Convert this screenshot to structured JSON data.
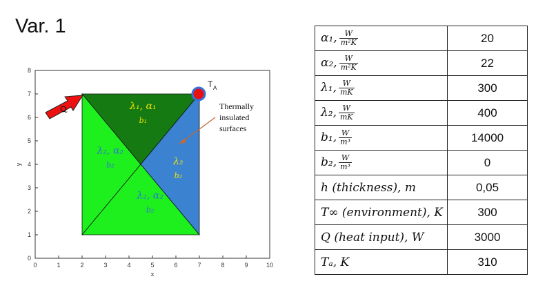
{
  "title": "Var. 1",
  "plot": {
    "x_axis_label": "x",
    "y_axis_label": "y",
    "x_ticks": [
      "0",
      "1",
      "2",
      "3",
      "4",
      "5",
      "6",
      "7",
      "8",
      "9",
      "10"
    ],
    "y_ticks": [
      "0",
      "1",
      "2",
      "3",
      "4",
      "5",
      "6",
      "7",
      "8"
    ],
    "heat_label": "Q",
    "ta_label": "T",
    "ta_sub": "A",
    "insulated_text": [
      "Thermally",
      "insulated",
      "surfaces"
    ],
    "regions": {
      "top": {
        "lambda": "λ₁, α₁",
        "b": "b₁",
        "color": "#157a12",
        "text_color": "#f5e500"
      },
      "left": {
        "lambda": "λ₂, α₂",
        "b": "b₂",
        "color": "#1ef01e",
        "text_color": "#3070d8"
      },
      "right": {
        "lambda": "λ₂",
        "b": "b₂",
        "color": "#3b82d0",
        "text_color": "#f5e500"
      },
      "bottom": {
        "lambda": "λ₂, α₂",
        "b": "b₂",
        "color": "#1ef01e",
        "text_color": "#3070d8"
      }
    },
    "colors": {
      "heat_arrow": "#ee1111",
      "ta_marker": "#e81010",
      "ta_ring": "#3a6fd8",
      "pointer_arrow": "#c06a3a"
    }
  },
  "table": {
    "rows": [
      {
        "sym": "α₁,",
        "num": "W",
        "den": "m²K",
        "value": "20"
      },
      {
        "sym": "α₂,",
        "num": "W",
        "den": "m²K",
        "value": "22"
      },
      {
        "sym": "λ₁,",
        "num": "W",
        "den": "mK",
        "value": "300"
      },
      {
        "sym": "λ₂,",
        "num": "W",
        "den": "mK",
        "value": "400"
      },
      {
        "sym": "b₁,",
        "num": "W",
        "den": "m³",
        "value": "14000"
      },
      {
        "sym": "b₂,",
        "num": "W",
        "den": "m³",
        "value": "0"
      },
      {
        "sym": "h (thickness), m",
        "value": "0,05"
      },
      {
        "sym": "T∞ (environment), K",
        "value": "300"
      },
      {
        "sym": "Q (heat input), W",
        "value": "3000"
      },
      {
        "sym": "Tₐ, K",
        "value": "310"
      }
    ]
  }
}
